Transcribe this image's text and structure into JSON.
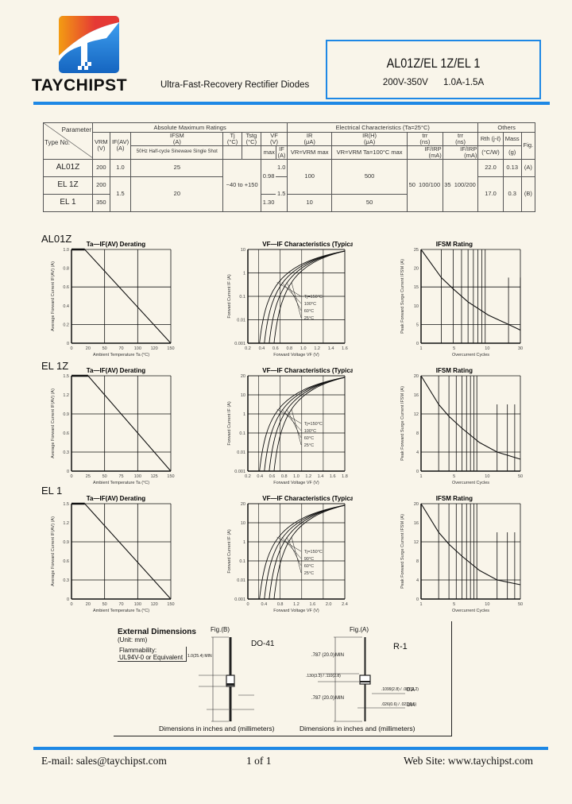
{
  "header": {
    "brand": "TAYCHIPST",
    "subtitle": "Ultra-Fast-Recovery Rectifier Diodes",
    "part_numbers": "AL01Z/EL 1Z/EL 1",
    "voltage_range": "200V-350V",
    "current_range": "1.0A-1.5A",
    "accent_color": "#1e88e5"
  },
  "table": {
    "groups": {
      "abs_max": "Absolute Maximum Ratings",
      "elec": "Electrical Characteristics  (Ta=25°C)",
      "others": "Others"
    },
    "corner": {
      "parameter": "Parameter",
      "type_no": "Type No."
    },
    "columns": {
      "vrm": "VRM\n(V)",
      "ifav": "IF(AV)\n(A)",
      "ifsm": "IFSM\n(A)",
      "ifsm_cond": "50Hz Half-cycle Sinewave Single Shot",
      "tj": "Tj\n(°C)",
      "tstg": "Tstg\n(°C)",
      "vf": "VF\n(V)",
      "vf_max": "max",
      "vf_if": "IF\n(A)",
      "ir": "IR\n(μA)",
      "ir_cond": "VR=VRM max",
      "irh": "IR(H)\n(μA)",
      "irh_cond": "VR=VRM Ta=100°C max",
      "trr1": "trr\n(ns)",
      "trr1_cond": "IF/IRP\n(mA)",
      "trr2": "trr\n(ns)",
      "trr2_cond": "IF/IRP\n(mA)",
      "rth": "Rth (j-ℓ)",
      "rth_unit": "(°C/W)",
      "mass": "Mass",
      "mass_unit": "(g)",
      "fig": "Fig."
    },
    "rows": [
      {
        "type": "AL01Z",
        "vrm": "200",
        "ifav": "1.0",
        "ifsm": "25",
        "vf_if": "1.0",
        "ir": "100",
        "irh": "500",
        "rth": "22.0",
        "mass": "0.13",
        "fig": "(A)"
      },
      {
        "type": "EL 1Z",
        "vrm": "200",
        "ifav": "1.5",
        "ifsm": "20",
        "vf_if": "1.5",
        "ir": "",
        "irh": "",
        "rth": "17.0",
        "mass": "0.3",
        "fig": "(B)"
      },
      {
        "type": "EL 1",
        "vrm": "350",
        "ir": "10",
        "irh": "50",
        "vf_max": "1.30"
      }
    ],
    "shared": {
      "tj_tstg": "−40 to +150",
      "vf_max_top": "0.98",
      "trr1": "50",
      "trr1_cond": "100/100",
      "trr2": "35",
      "trr2_cond": "100/200"
    }
  },
  "chart_data": [
    {
      "model": "AL01Z",
      "type": "line",
      "title": "Ta—IF(AV) Derating",
      "xlabel": "Ambient Temperature  Ta (°C)",
      "ylabel": "Average Forward Current  IF(AV) (A)",
      "x": [
        0,
        20,
        150
      ],
      "values": [
        1.0,
        1.0,
        0
      ],
      "xticks": [
        "0",
        "20",
        "50",
        "70",
        "100",
        "120",
        "150"
      ],
      "yticks": [
        "0",
        "0.2",
        "0.4",
        "0.6",
        "0.8",
        "1.0"
      ],
      "ylim": [
        0,
        1.0
      ]
    },
    {
      "model": "AL01Z",
      "type": "line",
      "title": "VF—IF Characteristics (Typical)",
      "xlabel": "Forward Voltage  VF (V)",
      "ylabel": "Forward Current  IF (A)",
      "xticks": [
        "0.2",
        "0.4",
        "0.6",
        "0.8",
        "1.0",
        "1.2",
        "1.4",
        "1.6"
      ],
      "yticks": [
        "0.001",
        "0.01",
        "0.1",
        "1",
        "10"
      ],
      "series": [
        {
          "name": "Tj=150°C"
        },
        {
          "name": "100°C"
        },
        {
          "name": "60°C"
        },
        {
          "name": "25°C"
        }
      ]
    },
    {
      "model": "AL01Z",
      "type": "line",
      "title": "IFSM Rating",
      "xlabel": "Overcurrent Cycles",
      "ylabel": "Peak Forward Surge Current  IFSM (A)",
      "x": [
        1,
        2,
        3,
        5,
        10,
        20,
        30
      ],
      "values": [
        25,
        17.5,
        14.5,
        11,
        7.5,
        5,
        3.5
      ],
      "xticks": [
        "1",
        "5",
        "10",
        "30"
      ],
      "yticks": [
        "0",
        "5",
        "10",
        "15",
        "20",
        "25"
      ],
      "annotation": "10ms"
    },
    {
      "model": "EL 1Z",
      "type": "line",
      "title": "Ta—IF(AV) Derating",
      "xlabel": "Ambient Temperature  Ta (°C)",
      "ylabel": "Average Forward Current  IF(AV) (A)",
      "x": [
        0,
        25,
        150
      ],
      "values": [
        1.5,
        1.5,
        0
      ],
      "xticks": [
        "0",
        "25",
        "50",
        "75",
        "100",
        "125",
        "150"
      ],
      "yticks": [
        "0",
        "0.3",
        "0.6",
        "0.9",
        "1.2",
        "1.5"
      ],
      "ylim": [
        0,
        1.5
      ]
    },
    {
      "model": "EL 1Z",
      "type": "line",
      "title": "VF—IF Characteristics (Typical)",
      "xlabel": "Forward Voltage  VF (V)",
      "ylabel": "Forward Current  IF (A)",
      "xticks": [
        "0.2",
        "0.4",
        "0.6",
        "0.8",
        "1.0",
        "1.2",
        "1.4",
        "1.6",
        "1.8"
      ],
      "yticks": [
        "0.001",
        "0.01",
        "0.1",
        "1",
        "10",
        "20"
      ],
      "series": [
        {
          "name": "Tj=150°C"
        },
        {
          "name": "100°C"
        },
        {
          "name": "60°C"
        },
        {
          "name": "25°C"
        }
      ]
    },
    {
      "model": "EL 1Z",
      "type": "line",
      "title": "IFSM Rating",
      "xlabel": "Overcurrent Cycles",
      "ylabel": "Peak Forward Surge Current  IFSM (A)",
      "x": [
        1,
        2,
        3,
        5,
        10,
        20,
        50
      ],
      "values": [
        20,
        14,
        11.5,
        9,
        6,
        4,
        2.5
      ],
      "xticks": [
        "1",
        "5",
        "10",
        "50"
      ],
      "yticks": [
        "0",
        "4",
        "8",
        "12",
        "16",
        "20"
      ]
    },
    {
      "model": "EL 1",
      "type": "line",
      "title": "Ta—IF(AV) Derating",
      "xlabel": "Ambient Temperature  Ta (°C)",
      "ylabel": "Average Forward Current  IF(AV) (A)",
      "x": [
        0,
        20,
        150
      ],
      "values": [
        1.5,
        1.5,
        0
      ],
      "xticks": [
        "0",
        "20",
        "50",
        "70",
        "100",
        "120",
        "150"
      ],
      "yticks": [
        "0",
        "0.3",
        "0.6",
        "0.9",
        "1.2",
        "1.5"
      ],
      "ylim": [
        0,
        1.5
      ]
    },
    {
      "model": "EL 1",
      "type": "line",
      "title": "VF—IF Characteristics (Typical)",
      "xlabel": "Forward Voltage  VF (V)",
      "ylabel": "Forward Current  IF (A)",
      "xticks": [
        "0",
        "0.4",
        "0.8",
        "1.2",
        "1.6",
        "2.0",
        "2.4"
      ],
      "yticks": [
        "0.001",
        "0.01",
        "0.1",
        "1",
        "10",
        "20"
      ],
      "series": [
        {
          "name": "Tj=150°C"
        },
        {
          "name": "90°C"
        },
        {
          "name": "60°C"
        },
        {
          "name": "25°C"
        }
      ]
    },
    {
      "model": "EL 1",
      "type": "line",
      "title": "IFSM Rating",
      "xlabel": "Overcurrent Cycles",
      "ylabel": "Peak Forward Surge Current  IFSM (A)",
      "x": [
        1,
        2,
        3,
        5,
        10,
        20,
        50
      ],
      "values": [
        20,
        14,
        11.5,
        9,
        6,
        4,
        3
      ],
      "xticks": [
        "1",
        "5",
        "10",
        "50"
      ],
      "yticks": [
        "0",
        "4",
        "8",
        "12",
        "16",
        "20"
      ]
    }
  ],
  "models": {
    "m1": "AL01Z",
    "m2": "EL 1Z",
    "m3": "EL 1"
  },
  "dimensions": {
    "title": "External Dimensions",
    "unit": "(Unit: mm)",
    "flammability": "Flammability:",
    "flammability_value": "UL94V-0 or Equivalent",
    "fig_b": "Fig.(B)",
    "pkg_b": "DO-41",
    "fig_a": "Fig.(A)",
    "pkg_a": "R-1",
    "note": "Dimensions in inches and (millimeters)",
    "b_lead": "1.0(25.4) MIN",
    "a_lead": ".787 (20.0)",
    "min": "MIN",
    "dia": "DIA",
    "a_body": ".130(3.3) / .110(2.8)",
    "a_bd": ".1099(2.8) / .087(2.2)",
    "a_ld": ".026(0.6) / .021(0.5)"
  },
  "footer": {
    "email": "E-mail: sales@taychipst.com",
    "page": "1  of  1",
    "website": "Web Site: www.taychipst.com"
  }
}
